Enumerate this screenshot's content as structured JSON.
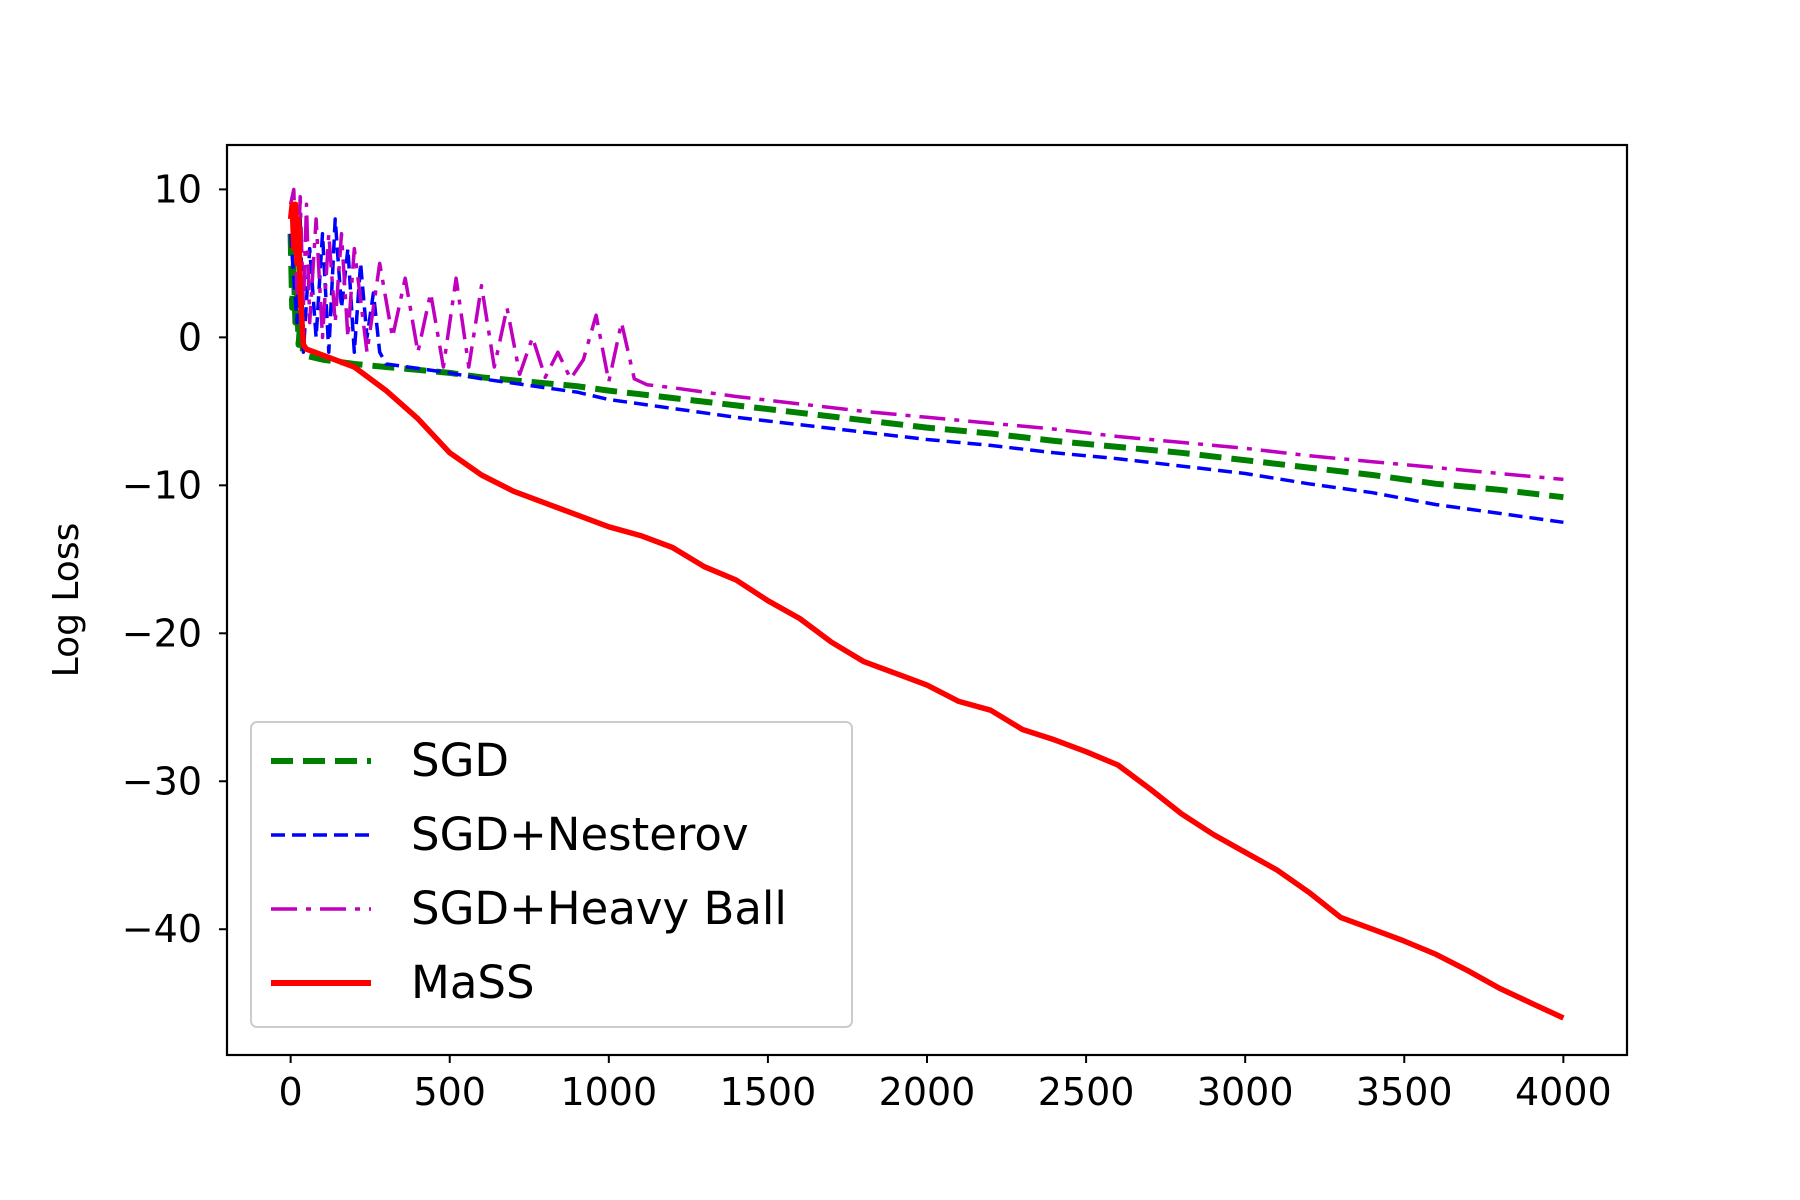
{
  "chart_data": {
    "type": "line",
    "title": "",
    "xlabel": "",
    "ylabel": "Log Loss",
    "xlim": [
      -200,
      4200
    ],
    "ylim": [
      -48.5,
      13
    ],
    "xticks": [
      0,
      500,
      1000,
      1500,
      2000,
      2500,
      3000,
      3500,
      4000
    ],
    "xtick_labels": [
      "0",
      "500",
      "1000",
      "1500",
      "2000",
      "2500",
      "3000",
      "3500",
      "4000"
    ],
    "yticks": [
      10,
      0,
      -10,
      -20,
      -30,
      -40
    ],
    "ytick_labels": [
      "10",
      "0",
      "−10",
      "−20",
      "−30",
      "−40"
    ],
    "grid": false,
    "legend_position": "lower-left",
    "series": [
      {
        "name": "SGD",
        "color": "#008000",
        "style": "dashed",
        "x": [
          0,
          5,
          10,
          15,
          20,
          25,
          30,
          40,
          60,
          100,
          200,
          300,
          400,
          500,
          600,
          700,
          800,
          900,
          1000,
          1200,
          1400,
          1600,
          1800,
          2000,
          2200,
          2400,
          2600,
          2800,
          3000,
          3200,
          3400,
          3600,
          3800,
          4000
        ],
        "y": [
          7,
          2,
          5,
          1,
          3,
          -0.5,
          1,
          -1.2,
          -1.3,
          -1.5,
          -1.8,
          -2.0,
          -2.2,
          -2.4,
          -2.7,
          -2.9,
          -3.1,
          -3.3,
          -3.6,
          -4.1,
          -4.6,
          -5.1,
          -5.6,
          -6.1,
          -6.5,
          -7.0,
          -7.4,
          -7.8,
          -8.3,
          -8.8,
          -9.3,
          -9.9,
          -10.3,
          -10.8
        ]
      },
      {
        "name": "SGD+Nesterov",
        "color": "#0000ff",
        "style": "dashed",
        "x": [
          0,
          10,
          20,
          30,
          40,
          60,
          80,
          100,
          120,
          140,
          160,
          180,
          200,
          220,
          240,
          260,
          280,
          300,
          400,
          500,
          600,
          700,
          800,
          900,
          1000,
          1200,
          1400,
          1600,
          1800,
          2000,
          2200,
          2400,
          2600,
          2800,
          3000,
          3200,
          3400,
          3600,
          3800,
          4000
        ],
        "y": [
          7,
          4,
          1,
          8,
          -1,
          6,
          0,
          7,
          -1,
          8,
          2,
          6,
          -1,
          5,
          0,
          3,
          -1,
          -1.8,
          -2.1,
          -2.4,
          -2.8,
          -3.1,
          -3.4,
          -3.7,
          -4.2,
          -4.8,
          -5.4,
          -5.9,
          -6.4,
          -6.9,
          -7.3,
          -7.8,
          -8.2,
          -8.7,
          -9.2,
          -9.9,
          -10.5,
          -11.3,
          -11.9,
          -12.5
        ]
      },
      {
        "name": "SGD+Heavy Ball",
        "color": "#bf00bf",
        "style": "dashdot",
        "x": [
          0,
          10,
          20,
          30,
          40,
          50,
          60,
          80,
          100,
          120,
          140,
          160,
          180,
          200,
          240,
          280,
          320,
          360,
          400,
          440,
          480,
          520,
          560,
          600,
          640,
          680,
          720,
          760,
          800,
          840,
          880,
          920,
          960,
          1000,
          1040,
          1080,
          1120,
          1200,
          1400,
          1600,
          1800,
          2000,
          2200,
          2400,
          2600,
          2800,
          3000,
          3200,
          3400,
          3600,
          3800,
          4000
        ],
        "y": [
          9,
          10,
          3,
          9.5,
          2,
          9,
          1,
          8,
          0,
          7,
          1,
          7,
          0,
          6,
          -1,
          5,
          0,
          4,
          -1,
          3,
          -2,
          4,
          -2,
          3.5,
          -2,
          2,
          -2.5,
          0,
          -2.7,
          -1,
          -2.8,
          -1.5,
          1.5,
          -3.0,
          1.0,
          -2.8,
          -3.2,
          -3.4,
          -4.0,
          -4.5,
          -5.0,
          -5.4,
          -5.8,
          -6.2,
          -6.7,
          -7.1,
          -7.5,
          -8.0,
          -8.4,
          -8.8,
          -9.2,
          -9.6
        ]
      },
      {
        "name": "MaSS",
        "color": "#ff0000",
        "style": "solid",
        "x": [
          0,
          5,
          10,
          15,
          20,
          25,
          30,
          40,
          50,
          100,
          200,
          300,
          400,
          500,
          600,
          700,
          800,
          900,
          1000,
          1100,
          1200,
          1300,
          1400,
          1500,
          1600,
          1700,
          1800,
          1900,
          2000,
          2100,
          2200,
          2300,
          2400,
          2500,
          2600,
          2700,
          2800,
          2900,
          3000,
          3100,
          3200,
          3300,
          3400,
          3500,
          3600,
          3700,
          3800,
          3900,
          4000
        ],
        "y": [
          8,
          9,
          6,
          9,
          5,
          8,
          3,
          -0.5,
          -0.8,
          -1.2,
          -2.0,
          -3.6,
          -5.5,
          -7.8,
          -9.3,
          -10.4,
          -11.2,
          -12.0,
          -12.8,
          -13.4,
          -14.2,
          -15.5,
          -16.4,
          -17.8,
          -19.0,
          -20.6,
          -21.9,
          -22.7,
          -23.5,
          -24.6,
          -25.2,
          -26.5,
          -27.2,
          -28.0,
          -28.9,
          -30.5,
          -32.2,
          -33.6,
          -34.8,
          -36.0,
          -37.5,
          -39.2,
          -40.0,
          -40.8,
          -41.7,
          -42.8,
          -44.0,
          -45.0,
          -46.0
        ]
      }
    ]
  }
}
